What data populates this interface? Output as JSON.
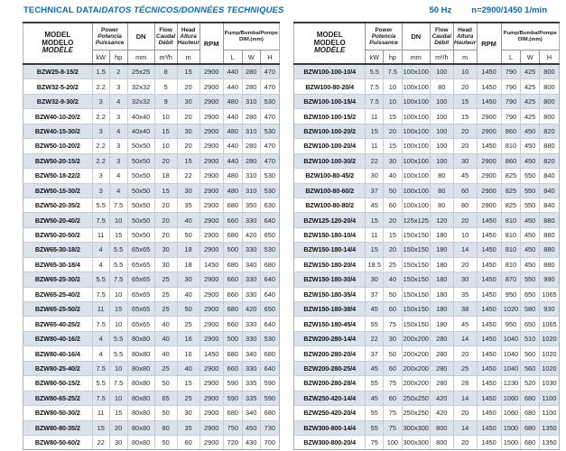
{
  "title": {
    "main": "TECHNICAL DATA/",
    "italic": "DATOS TÉCNICOS/DONNÉES TECHNIQUES",
    "freq": "50 Hz",
    "speed": "n=2900/1450 1/min"
  },
  "accent_color": "#0c6ab2",
  "row_shade_color": "#dbe2eb",
  "header": {
    "model": [
      "MODEL",
      "MODELO",
      "MODÈLE"
    ],
    "power": [
      "Power",
      "Potencia",
      "Puissance"
    ],
    "dn": "DN",
    "flow": [
      "Flow",
      "Caudal",
      "Débit"
    ],
    "head": [
      "Head",
      "Altura",
      "Hauteur"
    ],
    "rpm": "RPM",
    "pump_dim": [
      "Pump/Bomba/Pompe",
      "DIM.(mm)"
    ],
    "units": {
      "kw": "kW",
      "hp": "hp",
      "dn": "mm",
      "flow": "m³/h",
      "head": "m",
      "l": "L",
      "w": "W",
      "h": "H"
    }
  },
  "columns": [
    "model",
    "kw",
    "hp",
    "dn",
    "flow",
    "head",
    "rpm",
    "l",
    "w",
    "h"
  ],
  "left_table": {
    "rows": [
      [
        "BZW25-8-15/2",
        "1.5",
        "2",
        "25x25",
        "8",
        "15",
        "2900",
        "440",
        "280",
        "470"
      ],
      [
        "BZW32-5-20/2",
        "2.2",
        "3",
        "32x32",
        "5",
        "20",
        "2900",
        "440",
        "280",
        "470"
      ],
      [
        "BZW32-9-30/2",
        "3",
        "4",
        "32x32",
        "9",
        "30",
        "2900",
        "480",
        "310",
        "530"
      ],
      [
        "BZW40-10-20/2",
        "2.2",
        "3",
        "40x40",
        "10",
        "20",
        "2900",
        "440",
        "280",
        "470"
      ],
      [
        "BZW40-15-30/2",
        "3",
        "4",
        "40x40",
        "15",
        "30",
        "2900",
        "480",
        "310",
        "530"
      ],
      [
        "BZW50-10-20/2",
        "2.2",
        "3",
        "50x50",
        "10",
        "20",
        "2900",
        "440",
        "280",
        "470"
      ],
      [
        "BZW50-20-15/2",
        "2.2",
        "3",
        "50x50",
        "20",
        "15",
        "2900",
        "440",
        "280",
        "470"
      ],
      [
        "BZW50-18-22/2",
        "3",
        "4",
        "50x50",
        "18",
        "22",
        "2900",
        "480",
        "310",
        "530"
      ],
      [
        "BZW50-15-30/2",
        "3",
        "4",
        "50x50",
        "15",
        "30",
        "2900",
        "480",
        "310",
        "530"
      ],
      [
        "BZW50-20-35/2",
        "5.5",
        "7.5",
        "50x50",
        "20",
        "35",
        "2900",
        "680",
        "350",
        "630"
      ],
      [
        "BZW50-20-40/2",
        "7.5",
        "10",
        "50x50",
        "20",
        "40",
        "2900",
        "660",
        "330",
        "640"
      ],
      [
        "BZW50-20-50/2",
        "11",
        "15",
        "50x50",
        "20",
        "50",
        "2900",
        "680",
        "420",
        "650"
      ],
      [
        "BZW65-30-18/2",
        "4",
        "5.5",
        "65x65",
        "30",
        "18",
        "2900",
        "500",
        "330",
        "530"
      ],
      [
        "BZW65-30-18/4",
        "4",
        "5.5",
        "65x65",
        "30",
        "18",
        "1450",
        "680",
        "340",
        "680"
      ],
      [
        "BZW65-25-30/2",
        "5.5",
        "7.5",
        "65x65",
        "25",
        "30",
        "2900",
        "660",
        "330",
        "640"
      ],
      [
        "BZW65-25-40/2",
        "7.5",
        "10",
        "65x65",
        "25",
        "40",
        "2900",
        "660",
        "330",
        "640"
      ],
      [
        "BZW65-25-50/2",
        "11",
        "15",
        "65x65",
        "25",
        "50",
        "2900",
        "680",
        "420",
        "650"
      ],
      [
        "BZW65-40-25/2",
        "7.5",
        "10",
        "65x65",
        "40",
        "25",
        "2900",
        "660",
        "330",
        "640"
      ],
      [
        "BZW80-40-16/2",
        "4",
        "5.5",
        "80x80",
        "40",
        "16",
        "2900",
        "500",
        "330",
        "530"
      ],
      [
        "BZW80-40-16/4",
        "4",
        "5.5",
        "80x80",
        "40",
        "16",
        "1450",
        "680",
        "340",
        "680"
      ],
      [
        "BZW80-25-40/2",
        "7.5",
        "10",
        "80x80",
        "25",
        "40",
        "2900",
        "660",
        "330",
        "640"
      ],
      [
        "BZW80-50-15/2",
        "5.5",
        "7.5",
        "80x80",
        "50",
        "15",
        "2900",
        "590",
        "335",
        "590"
      ],
      [
        "BZW80-65-25/2",
        "7.5",
        "10",
        "80x80",
        "65",
        "25",
        "2900",
        "590",
        "335",
        "590"
      ],
      [
        "BZW80-50-30/2",
        "11",
        "15",
        "80x80",
        "50",
        "30",
        "2900",
        "680",
        "340",
        "680"
      ],
      [
        "BZW80-80-35/2",
        "15",
        "20",
        "80x80",
        "80",
        "35",
        "2900",
        "750",
        "450",
        "730"
      ],
      [
        "BZW80-50-60/2",
        "22",
        "30",
        "80x80",
        "50",
        "60",
        "2900",
        "720",
        "430",
        "700"
      ]
    ]
  },
  "right_table": {
    "rows": [
      [
        "BZW100-100-10/4",
        "5.5",
        "7.5",
        "100x100",
        "100",
        "10",
        "1450",
        "790",
        "425",
        "800"
      ],
      [
        "BZW100-80-20/4",
        "7.5",
        "10",
        "100x100",
        "80",
        "20",
        "1450",
        "790",
        "425",
        "800"
      ],
      [
        "BZW100-100-15/4",
        "7.5",
        "10",
        "100x100",
        "100",
        "15",
        "1450",
        "790",
        "425",
        "800"
      ],
      [
        "BZW100-100-15/2",
        "11",
        "15",
        "100x100",
        "100",
        "15",
        "2900",
        "790",
        "425",
        "800"
      ],
      [
        "BZW100-100-20/2",
        "15",
        "20",
        "100x100",
        "100",
        "20",
        "2900",
        "860",
        "450",
        "820"
      ],
      [
        "BZW100-100-20/4",
        "11",
        "15",
        "100x100",
        "100",
        "20",
        "1450",
        "810",
        "450",
        "880"
      ],
      [
        "BZW100-100-30/2",
        "22",
        "30",
        "100x100",
        "100",
        "30",
        "2900",
        "860",
        "450",
        "820"
      ],
      [
        "BZW100-80-45/2",
        "30",
        "40",
        "100x100",
        "80",
        "45",
        "2900",
        "825",
        "550",
        "840"
      ],
      [
        "BZW100-80-60/2",
        "37",
        "50",
        "100x100",
        "80",
        "60",
        "2900",
        "825",
        "550",
        "840"
      ],
      [
        "BZW100-80-80/2",
        "45",
        "60",
        "100x100",
        "80",
        "80",
        "2900",
        "825",
        "550",
        "840"
      ],
      [
        "BZW125-120-20/4",
        "15",
        "20",
        "125x125",
        "120",
        "20",
        "1450",
        "810",
        "450",
        "880"
      ],
      [
        "BZW150-180-10/4",
        "11",
        "15",
        "150x150",
        "180",
        "10",
        "1450",
        "810",
        "450",
        "880"
      ],
      [
        "BZW150-180-14/4",
        "15",
        "20",
        "150x150",
        "180",
        "14",
        "1450",
        "810",
        "450",
        "880"
      ],
      [
        "BZW150-180-20/4",
        "18.5",
        "25",
        "150x150",
        "180",
        "20",
        "1450",
        "810",
        "450",
        "880"
      ],
      [
        "BZW150-180-30/4",
        "30",
        "40",
        "150x150",
        "180",
        "30",
        "1450",
        "870",
        "550",
        "990"
      ],
      [
        "BZW150-180-35/4",
        "37",
        "50",
        "150x150",
        "180",
        "35",
        "1450",
        "950",
        "650",
        "1065"
      ],
      [
        "BZW150-180-38/4",
        "45",
        "60",
        "150x150",
        "180",
        "38",
        "1450",
        "1020",
        "580",
        "930"
      ],
      [
        "BZW150-180-45/4",
        "55",
        "75",
        "150x150",
        "180",
        "45",
        "1450",
        "950",
        "650",
        "1065"
      ],
      [
        "BZW200-280-14/4",
        "22",
        "30",
        "200x200",
        "280",
        "14",
        "1450",
        "1040",
        "510",
        "1020"
      ],
      [
        "BZW200-280-20/4",
        "37",
        "50",
        "200x200",
        "280",
        "20",
        "1450",
        "1040",
        "560",
        "1020"
      ],
      [
        "BZW200-280-25/4",
        "45",
        "60",
        "200x200",
        "280",
        "25",
        "1450",
        "1040",
        "560",
        "1020"
      ],
      [
        "BZW200-280-28/4",
        "55",
        "75",
        "200x200",
        "280",
        "28",
        "1450",
        "1230",
        "520",
        "1030"
      ],
      [
        "BZW250-420-14/4",
        "45",
        "60",
        "250x250",
        "420",
        "14",
        "1450",
        "1060",
        "680",
        "1100"
      ],
      [
        "BZW250-420-20/4",
        "55",
        "75",
        "250x250",
        "420",
        "20",
        "1450",
        "1060",
        "680",
        "1100"
      ],
      [
        "BZW300-800-14/4",
        "55",
        "75",
        "300x300",
        "800",
        "14",
        "1450",
        "1500",
        "680",
        "1350"
      ],
      [
        "BZW300-800-20/4",
        "75",
        "100",
        "300x300",
        "800",
        "20",
        "1450",
        "1500",
        "680",
        "1350"
      ]
    ]
  }
}
